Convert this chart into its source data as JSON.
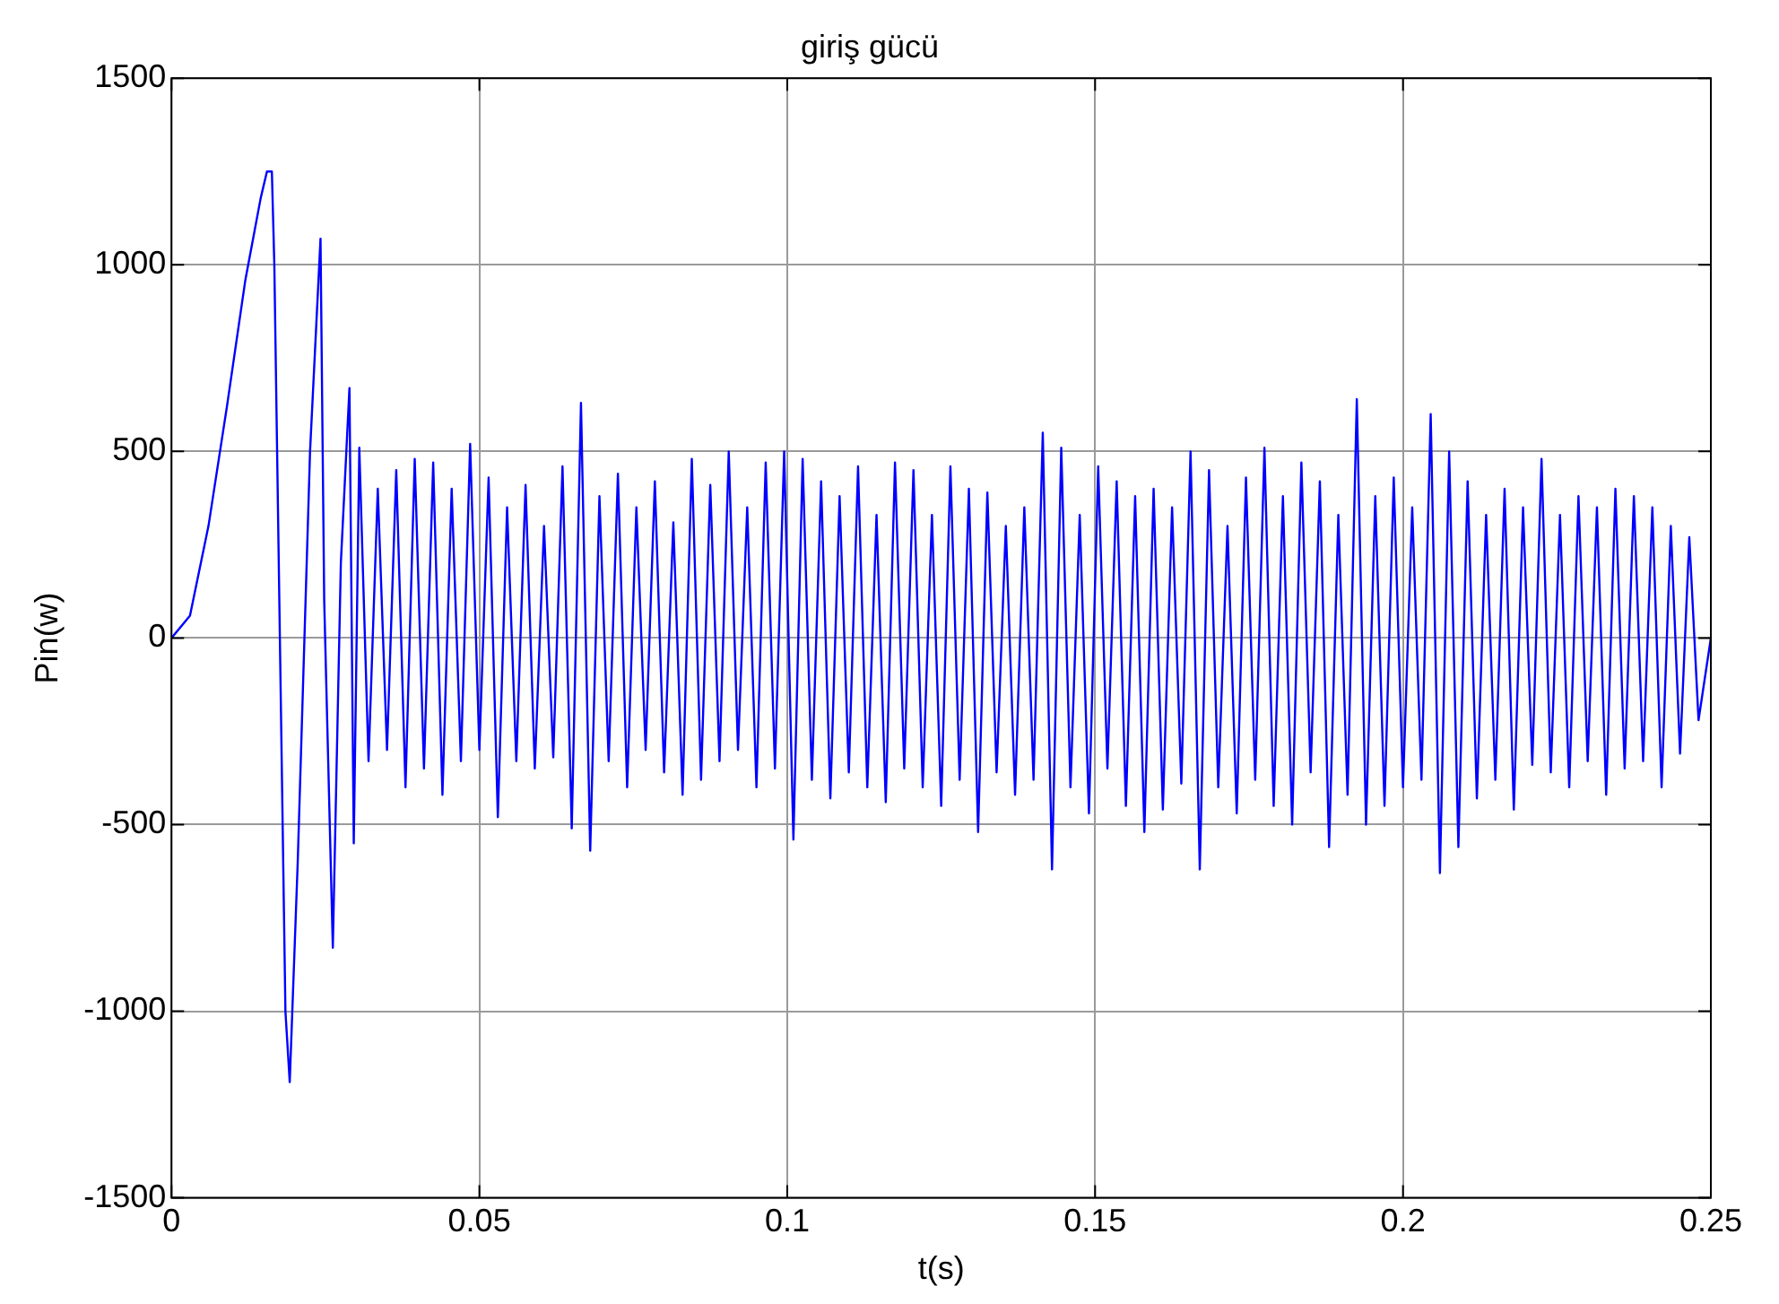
{
  "chart_data": {
    "type": "line",
    "title": "giriş gücü",
    "xlabel": "t(s)",
    "ylabel": "Pin(w)",
    "xlim": [
      0,
      0.25
    ],
    "xticks": [
      0,
      0.05,
      0.1,
      0.15,
      0.2,
      0.25
    ],
    "ylim": [
      -1500,
      1500
    ],
    "yticks": [
      -1500,
      -1000,
      -500,
      0,
      500,
      1000,
      1500
    ],
    "grid": true,
    "marker": "none",
    "line_style": "solid",
    "series": [
      {
        "color": "#0000ff",
        "x": [
          0,
          0.003,
          0.006,
          0.009,
          0.012,
          0.0145,
          0.0155,
          0.0163,
          0.0167,
          0.0185,
          0.0192,
          0.0205,
          0.0225,
          0.0242,
          0.0248,
          0.0262,
          0.0275,
          0.0289,
          0.0296,
          0.0305,
          0.032,
          0.0335,
          0.035,
          0.0365,
          0.038,
          0.0395,
          0.041,
          0.0425,
          0.044,
          0.0455,
          0.047,
          0.0485,
          0.05,
          0.0515,
          0.053,
          0.0545,
          0.056,
          0.0575,
          0.059,
          0.0605,
          0.062,
          0.0635,
          0.065,
          0.0665,
          0.068,
          0.0695,
          0.071,
          0.0725,
          0.074,
          0.0755,
          0.077,
          0.0785,
          0.08,
          0.0815,
          0.083,
          0.0845,
          0.086,
          0.0875,
          0.089,
          0.0905,
          0.092,
          0.0935,
          0.095,
          0.0965,
          0.098,
          0.0995,
          0.101,
          0.1025,
          0.104,
          0.1055,
          0.107,
          0.1085,
          0.11,
          0.1115,
          0.113,
          0.1145,
          0.116,
          0.1175,
          0.119,
          0.1205,
          0.122,
          0.1235,
          0.125,
          0.1265,
          0.128,
          0.1295,
          0.131,
          0.1325,
          0.134,
          0.1355,
          0.137,
          0.1385,
          0.14,
          0.1415,
          0.143,
          0.1445,
          0.146,
          0.1475,
          0.149,
          0.1505,
          0.152,
          0.1535,
          0.155,
          0.1565,
          0.158,
          0.1595,
          0.161,
          0.1625,
          0.164,
          0.1655,
          0.167,
          0.1685,
          0.17,
          0.1715,
          0.173,
          0.1745,
          0.176,
          0.1775,
          0.179,
          0.1805,
          0.182,
          0.1835,
          0.185,
          0.1865,
          0.188,
          0.1895,
          0.191,
          0.1925,
          0.194,
          0.1955,
          0.197,
          0.1985,
          0.2,
          0.2015,
          0.203,
          0.2045,
          0.206,
          0.2075,
          0.209,
          0.2105,
          0.212,
          0.2135,
          0.215,
          0.2165,
          0.218,
          0.2195,
          0.221,
          0.2225,
          0.224,
          0.2255,
          0.227,
          0.2285,
          0.23,
          0.2315,
          0.233,
          0.2345,
          0.236,
          0.2375,
          0.239,
          0.2405,
          0.242,
          0.2435,
          0.245,
          0.2465,
          0.248,
          0.25
        ],
        "values": [
          0,
          60,
          300,
          620,
          960,
          1180,
          1250,
          1250,
          1000,
          -1000,
          -1190,
          -600,
          500,
          1070,
          100,
          -830,
          200,
          670,
          -550,
          510,
          -330,
          400,
          -300,
          450,
          -400,
          480,
          -350,
          470,
          -420,
          400,
          -330,
          520,
          -300,
          430,
          -480,
          350,
          -330,
          410,
          -350,
          300,
          -320,
          460,
          -510,
          630,
          -570,
          380,
          -330,
          440,
          -400,
          350,
          -300,
          420,
          -360,
          310,
          -420,
          480,
          -380,
          410,
          -330,
          500,
          -300,
          350,
          -400,
          470,
          -350,
          500,
          -540,
          480,
          -380,
          420,
          -430,
          380,
          -360,
          460,
          -400,
          330,
          -440,
          470,
          -350,
          450,
          -400,
          330,
          -450,
          460,
          -380,
          400,
          -520,
          390,
          -360,
          300,
          -420,
          350,
          -380,
          550,
          -620,
          510,
          -400,
          330,
          -470,
          460,
          -350,
          420,
          -450,
          380,
          -520,
          400,
          -460,
          350,
          -390,
          500,
          -620,
          450,
          -400,
          300,
          -470,
          430,
          -380,
          510,
          -450,
          380,
          -500,
          470,
          -360,
          420,
          -560,
          330,
          -420,
          640,
          -500,
          380,
          -450,
          430,
          -400,
          350,
          -380,
          600,
          -630,
          500,
          -560,
          420,
          -430,
          330,
          -380,
          400,
          -460,
          350,
          -340,
          480,
          -360,
          330,
          -400,
          380,
          -330,
          350,
          -420,
          400,
          -350,
          380,
          -330,
          350,
          -400,
          300,
          -310,
          270,
          -220,
          0
        ]
      }
    ]
  }
}
